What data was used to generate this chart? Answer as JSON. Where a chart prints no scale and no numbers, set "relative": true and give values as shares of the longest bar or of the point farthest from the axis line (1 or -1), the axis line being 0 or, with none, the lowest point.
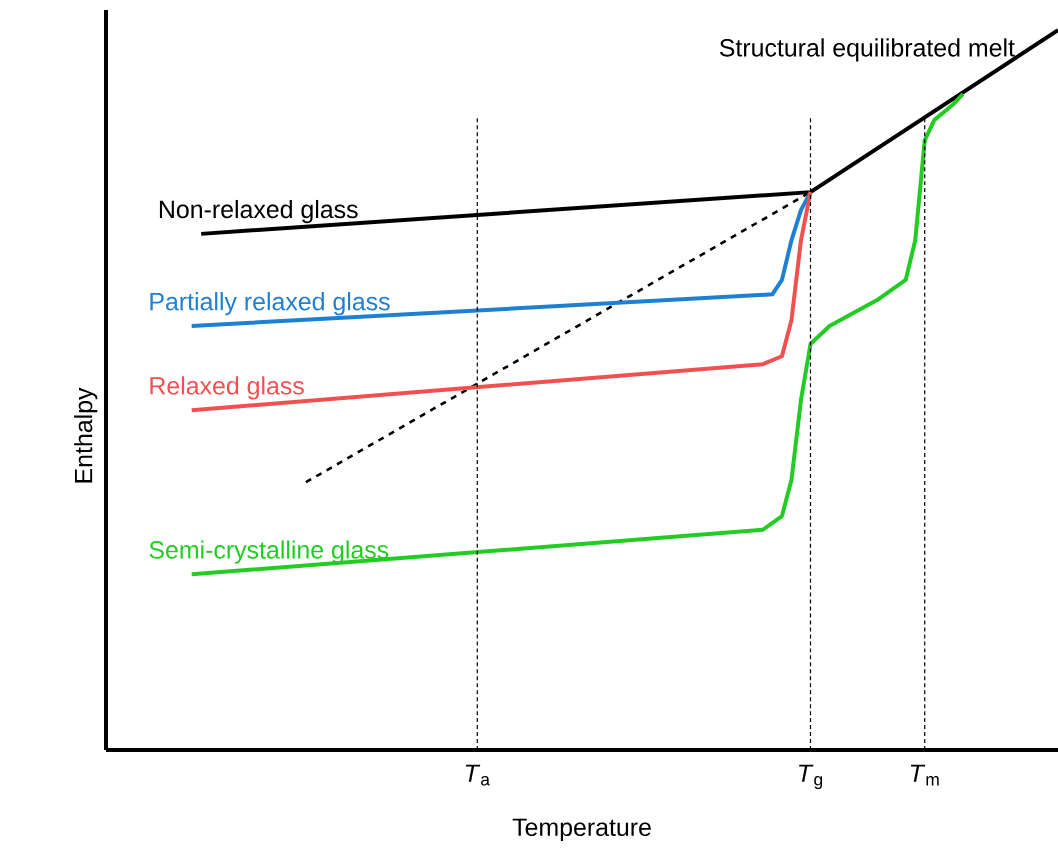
{
  "chart_data": {
    "type": "line",
    "relative": true,
    "xlabel": "Temperature",
    "ylabel": "Enthalpy",
    "categories": [
      null,
      null,
      null,
      null,
      null,
      null,
      null,
      null,
      null,
      null,
      null,
      null,
      null,
      null,
      null,
      null,
      null,
      null,
      null,
      null,
      null,
      null,
      null,
      null,
      null,
      null,
      null,
      null,
      null,
      null,
      null,
      null,
      null,
      null,
      null,
      null,
      null,
      null,
      null,
      "*T*$_{a}$",
      null,
      null,
      null,
      null,
      null,
      null,
      null,
      null,
      null,
      null,
      null,
      null,
      null,
      null,
      null,
      null,
      null,
      null,
      null,
      null,
      null,
      null,
      null,
      null,
      null,
      null,
      null,
      null,
      null,
      null,
      null,
      null,
      null,
      null,
      "*T*$_{g}$",
      null,
      null,
      null,
      null,
      null,
      null,
      null,
      null,
      null,
      null,
      null,
      "*T*$_{m}$",
      null,
      null,
      null,
      null,
      null,
      null,
      null,
      null,
      null,
      null,
      null,
      null,
      null,
      null
    ],
    "series": [
      {
        "name": "Non-relaxed glass",
        "color": "#000000",
        "values": [
          null,
          null,
          null,
          null,
          null,
          null,
          null,
          null,
          null,
          null,
          0.717,
          null,
          null,
          null,
          null,
          null,
          null,
          null,
          null,
          null,
          null,
          null,
          null,
          null,
          null,
          null,
          null,
          null,
          null,
          null,
          null,
          null,
          null,
          null,
          null,
          null,
          null,
          null,
          null,
          null,
          null,
          null,
          null,
          null,
          null,
          null,
          null,
          null,
          null,
          null,
          null,
          null,
          null,
          null,
          null,
          null,
          null,
          null,
          null,
          null,
          null,
          null,
          null,
          null,
          null,
          null,
          null,
          null,
          null,
          null,
          null,
          null,
          null,
          null,
          0.775,
          null,
          null,
          null,
          null,
          null,
          null,
          null,
          null,
          null,
          null,
          null,
          null,
          null,
          null,
          null,
          null,
          null,
          null,
          null,
          null,
          null,
          null,
          null,
          null,
          null,
          1.0
        ]
      },
      {
        "color": "#000000",
        "line_style": "dashed",
        "values": [
          null,
          null,
          null,
          null,
          null,
          null,
          null,
          null,
          null,
          null,
          null,
          null,
          null,
          null,
          null,
          null,
          null,
          null,
          null,
          null,
          null,
          0.372,
          null,
          null,
          null,
          null,
          null,
          null,
          null,
          null,
          null,
          null,
          null,
          null,
          null,
          null,
          null,
          null,
          null,
          null,
          null,
          null,
          null,
          null,
          null,
          null,
          null,
          null,
          null,
          null,
          null,
          null,
          null,
          null,
          null,
          null,
          null,
          null,
          null,
          null,
          null,
          null,
          null,
          null,
          null,
          null,
          null,
          null,
          null,
          null,
          null,
          null,
          null,
          null,
          0.775,
          null,
          null,
          null,
          null,
          null,
          null,
          null,
          null,
          null,
          null,
          null,
          null,
          null,
          null,
          null,
          null,
          null,
          null,
          null,
          null,
          null,
          null,
          null,
          null,
          null,
          null
        ]
      },
      {
        "name": "Partially relaxed glass",
        "color": "#1f7fd0",
        "values": [
          null,
          null,
          null,
          null,
          null,
          null,
          null,
          null,
          null,
          0.589,
          null,
          null,
          null,
          null,
          null,
          null,
          null,
          null,
          null,
          null,
          null,
          null,
          null,
          null,
          null,
          null,
          null,
          null,
          null,
          null,
          null,
          null,
          null,
          null,
          null,
          null,
          null,
          null,
          null,
          null,
          null,
          null,
          null,
          null,
          null,
          null,
          null,
          null,
          null,
          null,
          null,
          null,
          null,
          null,
          null,
          null,
          null,
          null,
          null,
          null,
          null,
          null,
          null,
          null,
          null,
          null,
          null,
          null,
          null,
          null,
          0.633,
          0.653,
          0.708,
          0.75,
          0.775,
          null,
          null,
          null,
          null,
          null,
          null,
          null,
          null,
          null,
          null,
          null,
          null,
          null,
          null,
          null,
          null,
          null,
          null,
          null,
          null,
          null,
          null,
          null,
          null,
          null,
          null
        ]
      },
      {
        "name": "Relaxed glass",
        "color": "#f05050",
        "values": [
          null,
          null,
          null,
          null,
          null,
          null,
          null,
          null,
          null,
          0.472,
          null,
          null,
          null,
          null,
          null,
          null,
          null,
          null,
          null,
          null,
          null,
          null,
          null,
          null,
          null,
          null,
          null,
          null,
          null,
          null,
          null,
          null,
          null,
          null,
          null,
          null,
          null,
          null,
          null,
          null,
          null,
          null,
          null,
          null,
          null,
          null,
          null,
          null,
          null,
          null,
          null,
          null,
          null,
          null,
          null,
          null,
          null,
          null,
          null,
          null,
          null,
          null,
          null,
          null,
          null,
          null,
          null,
          null,
          null,
          0.536,
          null,
          0.547,
          0.597,
          0.708,
          0.775,
          null,
          null,
          null,
          null,
          null,
          null,
          null,
          null,
          null,
          null,
          null,
          null,
          null,
          null,
          null,
          null,
          null,
          null,
          null,
          null,
          null,
          null,
          null,
          null,
          null,
          null
        ]
      },
      {
        "name": "Semi-crystalline glass",
        "color": "#22cc22",
        "values": [
          null,
          null,
          null,
          null,
          null,
          null,
          null,
          null,
          null,
          0.244,
          null,
          null,
          null,
          null,
          null,
          null,
          null,
          null,
          null,
          null,
          null,
          null,
          null,
          null,
          null,
          null,
          null,
          null,
          null,
          null,
          null,
          null,
          null,
          null,
          null,
          null,
          null,
          null,
          null,
          null,
          null,
          null,
          null,
          null,
          null,
          null,
          null,
          null,
          null,
          null,
          null,
          null,
          null,
          null,
          null,
          null,
          null,
          null,
          null,
          null,
          null,
          null,
          null,
          null,
          null,
          null,
          null,
          null,
          null,
          0.306,
          null,
          0.325,
          0.375,
          0.486,
          0.564,
          null,
          0.589,
          null,
          null,
          null,
          null,
          0.625,
          null,
          null,
          0.653,
          0.708,
          0.847,
          0.875,
          null,
          0.897,
          0.911,
          null,
          null,
          null,
          null,
          null,
          null,
          null,
          null,
          null,
          null
        ]
      }
    ],
    "ref_lines": [
      {
        "axis": "x",
        "value": "*T*$_{a}$",
        "line_style": "dashed"
      },
      {
        "axis": "x",
        "value": "*T*$_{g}$",
        "line_style": "dashed"
      },
      {
        "axis": "x",
        "value": "*T*$_{m}$",
        "line_style": "dashed"
      }
    ],
    "annotations": [
      "Structural equilibrated melt"
    ]
  }
}
